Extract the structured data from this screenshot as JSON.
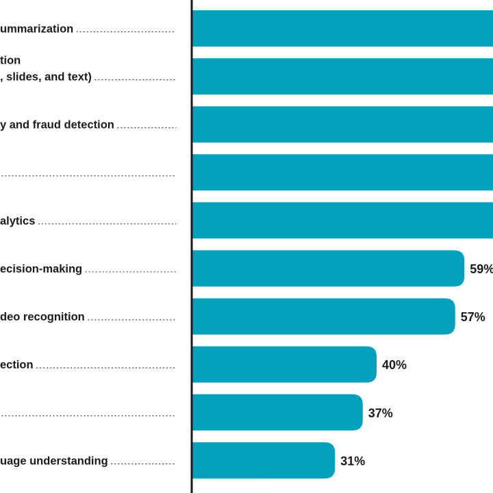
{
  "chart_data": {
    "type": "bar",
    "orientation": "horizontal",
    "bar_color": "#06A0BF",
    "text_color": "#1a1a1a",
    "categories": [
      {
        "lines": [
          "ummarization"
        ]
      },
      {
        "lines": [
          "tion",
          ", slides, and text)"
        ]
      },
      {
        "lines": [
          "y and fraud detection"
        ]
      },
      {
        "lines": [
          ""
        ]
      },
      {
        "lines": [
          "alytics"
        ]
      },
      {
        "lines": [
          "ecision-making"
        ]
      },
      {
        "lines": [
          "deo recognition"
        ]
      },
      {
        "lines": [
          "ection"
        ]
      },
      {
        "lines": [
          ""
        ]
      },
      {
        "lines": [
          "uage understanding"
        ]
      }
    ],
    "values": [
      null,
      null,
      null,
      null,
      null,
      59,
      57,
      40,
      37,
      31
    ],
    "value_labels": [
      "",
      "",
      "",
      "",
      "",
      "59%",
      "57%",
      "40%",
      "37%",
      "31%"
    ],
    "xlim": [
      0,
      100
    ],
    "grid": false,
    "legend": "none"
  }
}
